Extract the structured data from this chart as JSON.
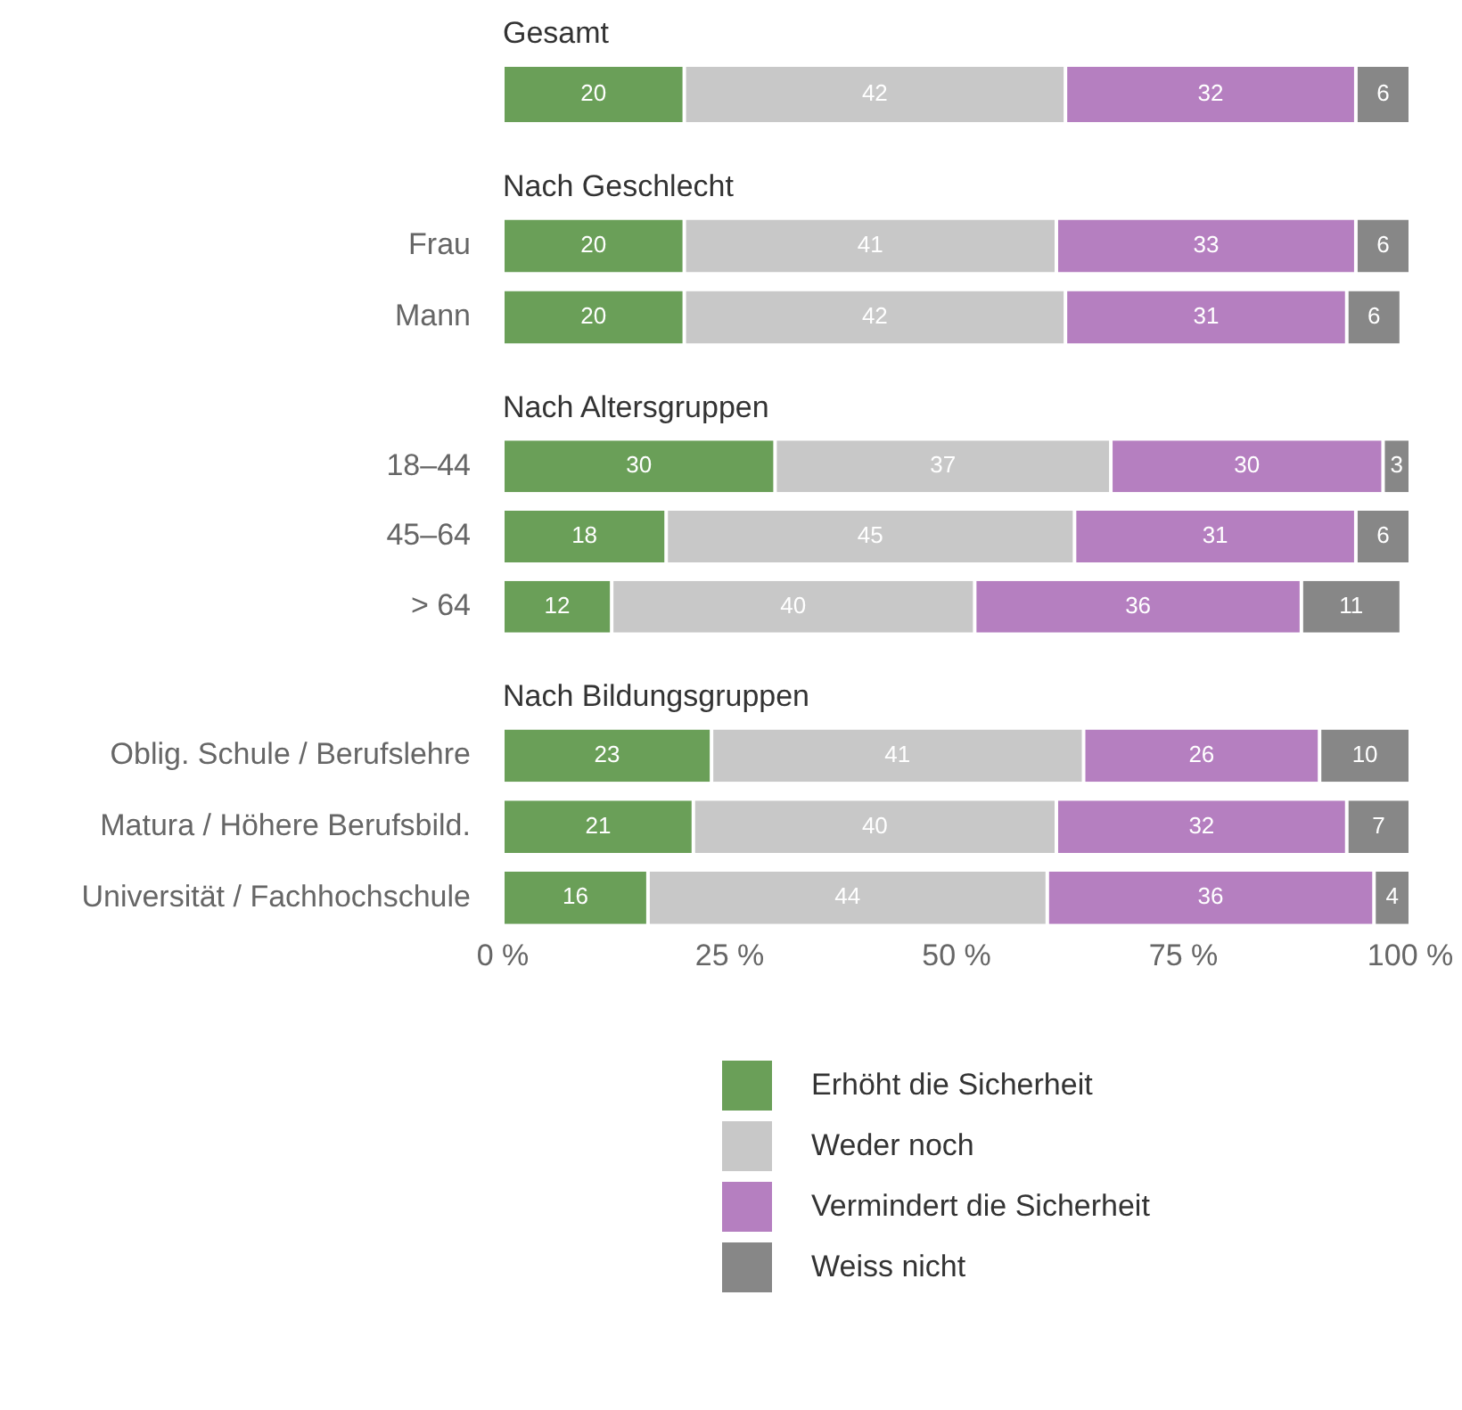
{
  "chart_data": [
    {
      "type": "bar",
      "orientation": "horizontal",
      "stacked": true,
      "title": "Gesamt",
      "categories": [
        null
      ],
      "xlim": [
        0,
        100
      ],
      "tick_labels": false,
      "data_labels": true,
      "grid": false,
      "legend": false,
      "series": [
        {
          "color": "#6a9f58",
          "values": [
            20
          ]
        },
        {
          "color": "#c8c8c8",
          "values": [
            42
          ]
        },
        {
          "color": "#b57fc0",
          "values": [
            32
          ]
        },
        {
          "color": "#878787",
          "values": [
            6
          ]
        }
      ]
    },
    {
      "type": "bar",
      "orientation": "horizontal",
      "stacked": true,
      "title": "Nach Geschlecht",
      "categories": [
        "Frau",
        "Mann"
      ],
      "xlim": [
        0,
        100
      ],
      "tick_labels": "y",
      "data_labels": true,
      "grid": false,
      "legend": false,
      "series": [
        {
          "color": "#6a9f58",
          "values": [
            20,
            20
          ]
        },
        {
          "color": "#c8c8c8",
          "values": [
            41,
            42
          ]
        },
        {
          "color": "#b57fc0",
          "values": [
            33,
            31
          ]
        },
        {
          "color": "#878787",
          "values": [
            6,
            6
          ]
        }
      ]
    },
    {
      "type": "bar",
      "orientation": "horizontal",
      "stacked": true,
      "title": "Nach Altersgruppen",
      "categories": [
        "18–44",
        "45–64",
        "> 64"
      ],
      "xlim": [
        0,
        100
      ],
      "tick_labels": "y",
      "data_labels": true,
      "grid": false,
      "legend": false,
      "series": [
        {
          "color": "#6a9f58",
          "values": [
            30,
            18,
            12
          ]
        },
        {
          "color": "#c8c8c8",
          "values": [
            37,
            45,
            40
          ]
        },
        {
          "color": "#b57fc0",
          "values": [
            30,
            31,
            36
          ]
        },
        {
          "color": "#878787",
          "values": [
            3,
            6,
            11
          ]
        }
      ]
    },
    {
      "type": "bar",
      "orientation": "horizontal",
      "stacked": true,
      "title": "Nach Bildungsgruppen",
      "categories": [
        "Oblig. Schule / Berufslehre",
        "Matura / Höhere Berufsbild.",
        "Universität / Fachhochschule"
      ],
      "xlim": [
        0,
        100
      ],
      "xticks": [
        {
          "value": 0,
          "label": "0 %"
        },
        {
          "value": 25,
          "label": "25 %"
        },
        {
          "value": 50,
          "label": "50 %"
        },
        {
          "value": 75,
          "label": "75 %"
        },
        {
          "value": 100,
          "label": "100 %"
        }
      ],
      "data_labels": true,
      "grid": false,
      "legend": "bottom",
      "series": [
        {
          "name": "Erhöht die Sicherheit",
          "color": "#6a9f58",
          "values": [
            23,
            21,
            16
          ]
        },
        {
          "name": "Weder noch",
          "color": "#c8c8c8",
          "values": [
            41,
            40,
            44
          ]
        },
        {
          "name": "Vermindert die Sicherheit",
          "color": "#b57fc0",
          "values": [
            26,
            32,
            36
          ]
        },
        {
          "name": "Weiss nicht",
          "color": "#878787",
          "values": [
            10,
            7,
            4
          ]
        }
      ]
    }
  ]
}
